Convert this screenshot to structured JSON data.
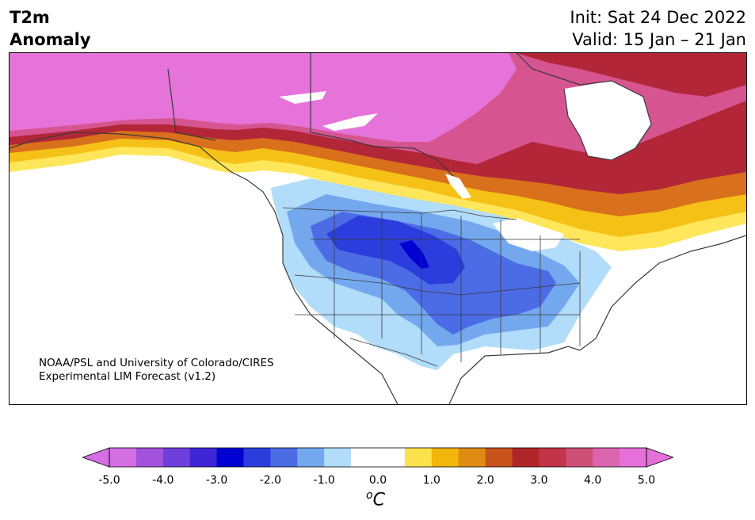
{
  "header": {
    "title_line1": "T2m",
    "title_line2": "Anomaly",
    "init_label": "Init: Sat 24 Dec 2022",
    "valid_label": "Valid: 15 Jan – 21 Jan"
  },
  "credit": {
    "line1": "NOAA/PSL and University of Colorado/CIRES",
    "line2": "Experimental LIM Forecast (v1.2)"
  },
  "colorbar": {
    "ticks": [
      "-5.0",
      "-4.0",
      "-3.0",
      "-2.0",
      "-1.0",
      "0.0",
      "1.0",
      "2.0",
      "3.0",
      "4.0",
      "5.0"
    ],
    "unit_super": "o",
    "unit_main": "C",
    "colors": [
      "#d36ee3",
      "#a352dd",
      "#6f3fdd",
      "#3c26d6",
      "#0000d2",
      "#2b3ddc",
      "#4c6ce6",
      "#74a8ee",
      "#b1dcfa",
      "#ffffff",
      "#ffffff",
      "#fde24d",
      "#f2b60a",
      "#df8b13",
      "#c9541b",
      "#b02628",
      "#c23447",
      "#cd4f78",
      "#dc63ae",
      "#e570d9"
    ],
    "under_color": "#d36ee3",
    "over_color": "#e570d9"
  },
  "map": {
    "region": "North America",
    "anomaly_colors": {
      "strong_warm": "#e673d9",
      "warm_4": "#d65590",
      "warm_3": "#b32638",
      "warm_2": "#d9701b",
      "warm_1": "#f6c117",
      "slight_warm": "#ffe65a",
      "cold_1": "#b1dcfa",
      "cold_2": "#74a8ee",
      "cold_3": "#4c6ce6",
      "cold_4": "#2b3ddc",
      "cold_5": "#0000d2",
      "coastline": "#3a3a3a"
    }
  }
}
